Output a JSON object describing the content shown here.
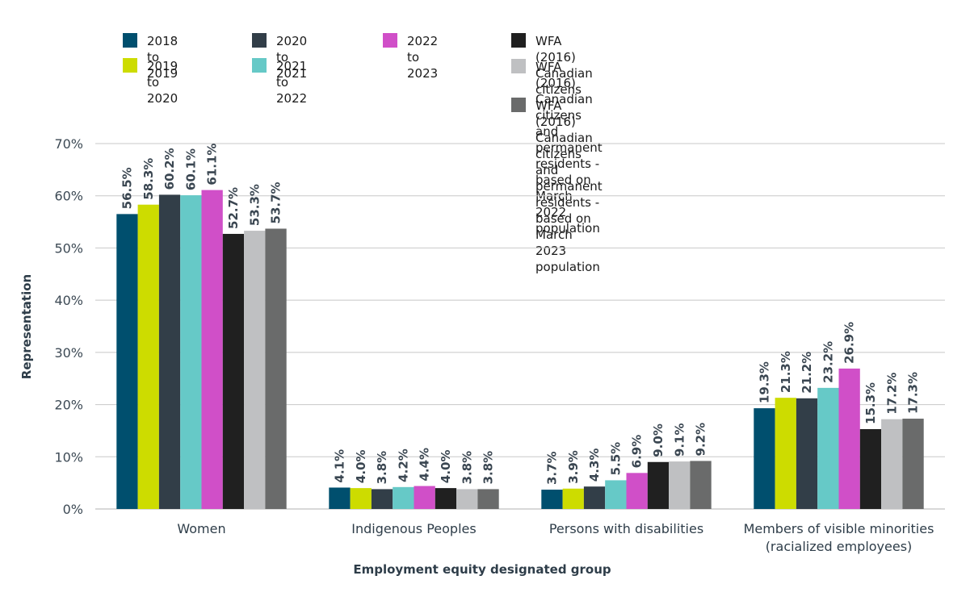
{
  "chart_data": {
    "type": "bar",
    "title": "",
    "xlabel": "Employment equity designated group",
    "ylabel": "Representation",
    "ylim": [
      0,
      70
    ],
    "yticks": [
      "0%",
      "10%",
      "20%",
      "30%",
      "40%",
      "50%",
      "60%",
      "70%"
    ],
    "grid": true,
    "legend_position": "top",
    "categories": [
      "Women",
      "Indigenous Peoples",
      "Persons with disabilities",
      "Members of visible minorities\n(racialized employees)"
    ],
    "series": [
      {
        "name": "2018 to 2019",
        "color": "#004f6e",
        "values": [
          56.5,
          4.1,
          3.7,
          19.3
        ],
        "labels": [
          "56.5%",
          "4.1%",
          "3.7%",
          "19.3%"
        ]
      },
      {
        "name": "2019 to 2020",
        "color": "#cddc00",
        "values": [
          58.3,
          4.0,
          3.9,
          21.3
        ],
        "labels": [
          "58.3%",
          "4.0%",
          "3.9%",
          "21.3%"
        ]
      },
      {
        "name": "2020 to 2021",
        "color": "#323e48",
        "values": [
          60.2,
          3.8,
          4.3,
          21.2
        ],
        "labels": [
          "60.2%",
          "3.8%",
          "4.3%",
          "21.2%"
        ]
      },
      {
        "name": "2021 to 2022",
        "color": "#66c9c7",
        "values": [
          60.1,
          4.2,
          5.5,
          23.2
        ],
        "labels": [
          "60.1%",
          "4.2%",
          "5.5%",
          "23.2%"
        ]
      },
      {
        "name": "2022 to 2023",
        "color": "#d04fc8",
        "values": [
          61.1,
          4.4,
          6.9,
          26.9
        ],
        "labels": [
          "61.1%",
          "4.4%",
          "6.9%",
          "26.9%"
        ]
      },
      {
        "name": "WFA (2016) Canadian citizens",
        "color": "#202020",
        "values": [
          52.7,
          4.0,
          9.0,
          15.3
        ],
        "labels": [
          "52.7%",
          "4.0%",
          "9.0%",
          "15.3%"
        ]
      },
      {
        "name": "WFA (2016) Canadian citizens\nand permanent residents - based on March 2022 population",
        "color": "#bfc0c2",
        "values": [
          53.3,
          3.8,
          9.1,
          17.2
        ],
        "labels": [
          "53.3%",
          "3.8%",
          "9.1%",
          "17.2%"
        ]
      },
      {
        "name": "WFA (2016) Canadian citizens\nand permanent residents - based on March 2023 population",
        "color": "#6a6b6b",
        "values": [
          53.7,
          3.8,
          9.2,
          17.3
        ],
        "labels": [
          "53.7%",
          "3.8%",
          "9.2%",
          "17.3%"
        ]
      }
    ]
  }
}
